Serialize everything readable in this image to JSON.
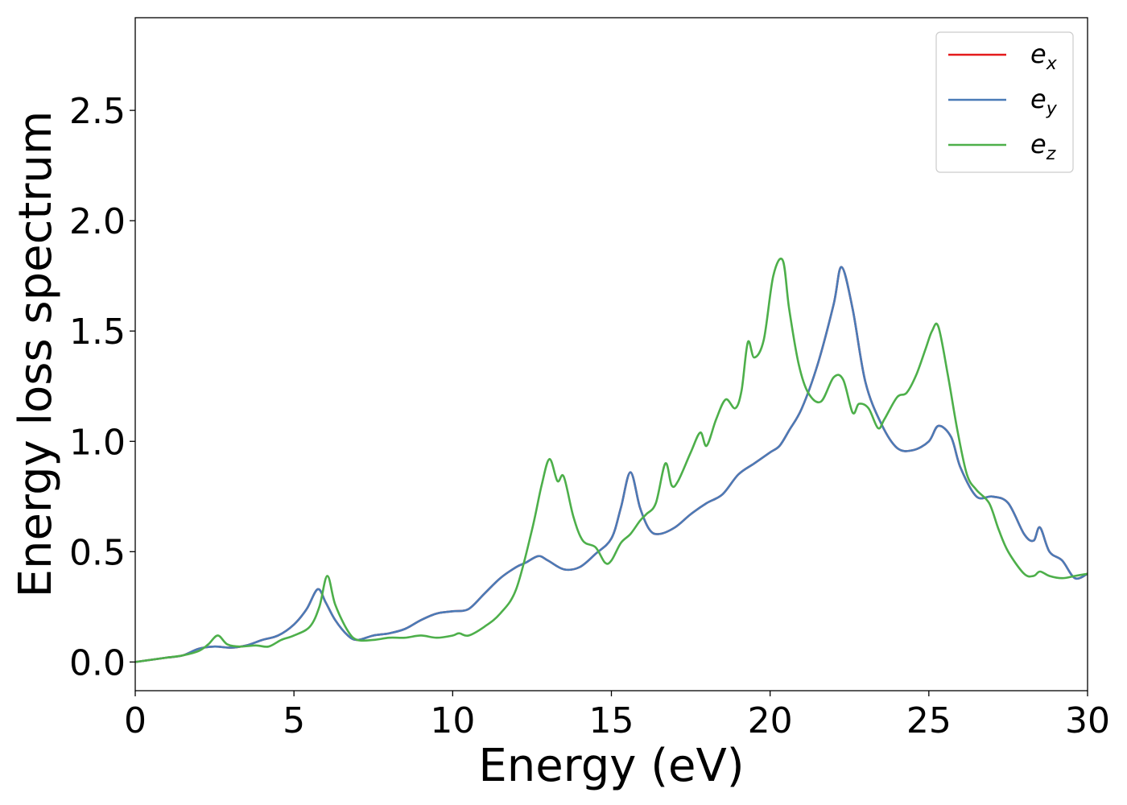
{
  "chart_data": {
    "type": "line",
    "xlabel": "Energy (eV)",
    "ylabel": "Energy loss spectrum",
    "xlim": [
      0,
      30
    ],
    "ylim": [
      -0.13,
      2.92
    ],
    "xticks": [
      "0",
      "5",
      "10",
      "15",
      "20",
      "25",
      "30"
    ],
    "yticks": [
      "0.0",
      "0.5",
      "1.0",
      "1.5",
      "2.0",
      "2.5"
    ],
    "grid": false,
    "legend_position": "top-right",
    "series": [
      {
        "name": "e",
        "subscript": "x",
        "color": "#e41a1c",
        "x": [
          0,
          0.5,
          1,
          1.5,
          2,
          2.5,
          3,
          3.5,
          4,
          4.5,
          5,
          5.4,
          5.75,
          6,
          6.3,
          6.7,
          7,
          7.5,
          8,
          8.5,
          9,
          9.5,
          10,
          10.5,
          11,
          11.5,
          12,
          12.3,
          12.7,
          13,
          13.5,
          14,
          14.5,
          15,
          15.3,
          15.6,
          15.9,
          16.2,
          16.5,
          17,
          17.5,
          18,
          18.5,
          19,
          19.5,
          20,
          20.3,
          20.6,
          21,
          21.5,
          22,
          22.25,
          22.6,
          23,
          23.5,
          24,
          24.5,
          25,
          25.3,
          25.7,
          26,
          26.5,
          27,
          27.5,
          28,
          28.3,
          28.5,
          28.8,
          29.2,
          29.6,
          30
        ],
        "y": [
          0,
          0.01,
          0.02,
          0.03,
          0.06,
          0.07,
          0.065,
          0.075,
          0.1,
          0.12,
          0.17,
          0.24,
          0.33,
          0.27,
          0.19,
          0.12,
          0.1,
          0.12,
          0.13,
          0.15,
          0.19,
          0.22,
          0.23,
          0.24,
          0.31,
          0.38,
          0.43,
          0.45,
          0.48,
          0.46,
          0.42,
          0.43,
          0.49,
          0.56,
          0.7,
          0.86,
          0.7,
          0.6,
          0.58,
          0.61,
          0.67,
          0.72,
          0.76,
          0.85,
          0.9,
          0.95,
          0.98,
          1.05,
          1.15,
          1.35,
          1.62,
          1.79,
          1.6,
          1.27,
          1.08,
          0.97,
          0.96,
          1.0,
          1.07,
          1.02,
          0.88,
          0.75,
          0.75,
          0.72,
          0.58,
          0.55,
          0.61,
          0.5,
          0.46,
          0.38,
          0.4
        ]
      },
      {
        "name": "e",
        "subscript": "y",
        "color": "#4a7bb7",
        "x": [
          0,
          0.5,
          1,
          1.5,
          2,
          2.5,
          3,
          3.5,
          4,
          4.5,
          5,
          5.4,
          5.75,
          6,
          6.3,
          6.7,
          7,
          7.5,
          8,
          8.5,
          9,
          9.5,
          10,
          10.5,
          11,
          11.5,
          12,
          12.3,
          12.7,
          13,
          13.5,
          14,
          14.5,
          15,
          15.3,
          15.6,
          15.9,
          16.2,
          16.5,
          17,
          17.5,
          18,
          18.5,
          19,
          19.5,
          20,
          20.3,
          20.6,
          21,
          21.5,
          22,
          22.25,
          22.6,
          23,
          23.5,
          24,
          24.5,
          25,
          25.3,
          25.7,
          26,
          26.5,
          27,
          27.5,
          28,
          28.3,
          28.5,
          28.8,
          29.2,
          29.6,
          30
        ],
        "y": [
          0,
          0.01,
          0.02,
          0.03,
          0.06,
          0.07,
          0.065,
          0.075,
          0.1,
          0.12,
          0.17,
          0.24,
          0.33,
          0.27,
          0.19,
          0.12,
          0.1,
          0.12,
          0.13,
          0.15,
          0.19,
          0.22,
          0.23,
          0.24,
          0.31,
          0.38,
          0.43,
          0.45,
          0.48,
          0.46,
          0.42,
          0.43,
          0.49,
          0.56,
          0.7,
          0.86,
          0.7,
          0.6,
          0.58,
          0.61,
          0.67,
          0.72,
          0.76,
          0.85,
          0.9,
          0.95,
          0.98,
          1.05,
          1.15,
          1.35,
          1.62,
          1.79,
          1.6,
          1.27,
          1.08,
          0.97,
          0.96,
          1.0,
          1.07,
          1.02,
          0.88,
          0.75,
          0.75,
          0.72,
          0.58,
          0.55,
          0.61,
          0.5,
          0.46,
          0.38,
          0.4
        ]
      },
      {
        "name": "e",
        "subscript": "z",
        "color": "#4daf4a",
        "x": [
          0,
          0.5,
          1,
          1.5,
          2,
          2.3,
          2.6,
          2.9,
          3.3,
          3.8,
          4.2,
          4.6,
          5,
          5.5,
          5.8,
          6.05,
          6.3,
          6.7,
          7,
          7.5,
          8,
          8.5,
          9,
          9.5,
          10,
          10.2,
          10.5,
          11,
          11.5,
          12,
          12.5,
          12.8,
          13.05,
          13.3,
          13.5,
          13.8,
          14.1,
          14.5,
          14.8,
          15,
          15.3,
          15.6,
          15.9,
          16.1,
          16.4,
          16.7,
          16.9,
          17.1,
          17.5,
          17.8,
          18,
          18.3,
          18.6,
          18.9,
          19.1,
          19.3,
          19.5,
          19.8,
          20.1,
          20.4,
          20.6,
          20.9,
          21.2,
          21.6,
          22,
          22.3,
          22.6,
          22.8,
          23.1,
          23.4,
          23.6,
          24,
          24.3,
          24.6,
          24.9,
          25.1,
          25.3,
          25.6,
          25.9,
          26.2,
          26.5,
          26.9,
          27.2,
          27.5,
          28,
          28.3,
          28.5,
          28.8,
          29.2,
          29.6,
          30
        ],
        "y": [
          0,
          0.01,
          0.02,
          0.03,
          0.05,
          0.08,
          0.12,
          0.08,
          0.07,
          0.075,
          0.07,
          0.1,
          0.12,
          0.16,
          0.25,
          0.39,
          0.26,
          0.14,
          0.1,
          0.1,
          0.11,
          0.11,
          0.12,
          0.11,
          0.12,
          0.13,
          0.12,
          0.16,
          0.22,
          0.33,
          0.6,
          0.8,
          0.92,
          0.82,
          0.84,
          0.66,
          0.55,
          0.52,
          0.45,
          0.46,
          0.54,
          0.58,
          0.64,
          0.67,
          0.72,
          0.9,
          0.8,
          0.82,
          0.95,
          1.04,
          0.98,
          1.1,
          1.19,
          1.15,
          1.23,
          1.45,
          1.38,
          1.46,
          1.75,
          1.82,
          1.6,
          1.35,
          1.22,
          1.18,
          1.29,
          1.28,
          1.13,
          1.17,
          1.15,
          1.06,
          1.1,
          1.2,
          1.22,
          1.3,
          1.42,
          1.5,
          1.52,
          1.3,
          1.05,
          0.85,
          0.78,
          0.72,
          0.6,
          0.5,
          0.4,
          0.39,
          0.41,
          0.39,
          0.38,
          0.39,
          0.4
        ]
      }
    ]
  }
}
